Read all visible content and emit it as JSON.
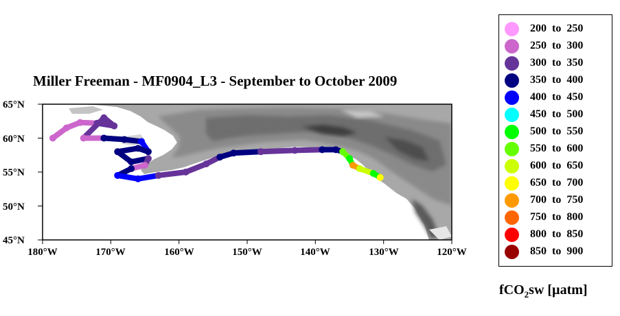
{
  "map": {
    "title": "Miller Freeman - MF0904_L3 - September to October 2009",
    "lat_labels": [
      "65°N",
      "60°N",
      "55°N",
      "50°N",
      "45°N"
    ],
    "lon_labels": [
      "180°W",
      "170°W",
      "160°W",
      "150°W",
      "140°W",
      "130°W",
      "120°W"
    ],
    "lat_range": [
      45,
      65
    ],
    "lon_range": [
      -180,
      -120
    ],
    "ship_track": [
      {
        "lon": -178.5,
        "lat": 60.0,
        "color": "#cc66cc"
      },
      {
        "lon": -176.5,
        "lat": 61.5,
        "color": "#cc66cc"
      },
      {
        "lon": -174.5,
        "lat": 62.3,
        "color": "#cc66cc"
      },
      {
        "lon": -172.0,
        "lat": 62.2,
        "color": "#663399"
      },
      {
        "lon": -169.5,
        "lat": 61.8,
        "color": "#663399"
      },
      {
        "lon": -171.0,
        "lat": 63.0,
        "color": "#663399"
      },
      {
        "lon": -174.0,
        "lat": 60.0,
        "color": "#cc66cc"
      },
      {
        "lon": -171.0,
        "lat": 60.0,
        "color": "#000080"
      },
      {
        "lon": -168.0,
        "lat": 59.8,
        "color": "#000080"
      },
      {
        "lon": -165.5,
        "lat": 59.5,
        "color": "#0000ff"
      },
      {
        "lon": -164.5,
        "lat": 58.0,
        "color": "#000080"
      },
      {
        "lon": -166.0,
        "lat": 58.5,
        "color": "#000080"
      },
      {
        "lon": -169.0,
        "lat": 58.0,
        "color": "#000080"
      },
      {
        "lon": -167.0,
        "lat": 56.5,
        "color": "#000080"
      },
      {
        "lon": -164.5,
        "lat": 57.0,
        "color": "#663399"
      },
      {
        "lon": -165.0,
        "lat": 56.0,
        "color": "#cc66cc"
      },
      {
        "lon": -167.0,
        "lat": 55.5,
        "color": "#000080"
      },
      {
        "lon": -169.0,
        "lat": 54.5,
        "color": "#0000ff"
      },
      {
        "lon": -166.0,
        "lat": 54.0,
        "color": "#0000ff"
      },
      {
        "lon": -163.0,
        "lat": 54.5,
        "color": "#663399"
      },
      {
        "lon": -159.0,
        "lat": 55.0,
        "color": "#663399"
      },
      {
        "lon": -156.0,
        "lat": 56.2,
        "color": "#663399"
      },
      {
        "lon": -154.0,
        "lat": 57.2,
        "color": "#000080"
      },
      {
        "lon": -152.0,
        "lat": 57.8,
        "color": "#000080"
      },
      {
        "lon": -148.0,
        "lat": 58.0,
        "color": "#663399"
      },
      {
        "lon": -143.0,
        "lat": 58.2,
        "color": "#663399"
      },
      {
        "lon": -139.0,
        "lat": 58.3,
        "color": "#000080"
      },
      {
        "lon": -137.0,
        "lat": 58.3,
        "color": "#000080"
      },
      {
        "lon": -136.0,
        "lat": 58.0,
        "color": "#66ff00"
      },
      {
        "lon": -135.0,
        "lat": 57.0,
        "color": "#00ff00"
      },
      {
        "lon": -134.5,
        "lat": 56.0,
        "color": "#ff9900"
      },
      {
        "lon": -133.5,
        "lat": 55.5,
        "color": "#ccff00"
      },
      {
        "lon": -131.5,
        "lat": 54.8,
        "color": "#00ff00"
      },
      {
        "lon": -130.5,
        "lat": 54.2,
        "color": "#ffff00"
      }
    ]
  },
  "legend": {
    "items": [
      {
        "label": "200 to 250",
        "color": "#ff99ff"
      },
      {
        "label": "250 to 300",
        "color": "#cc66cc"
      },
      {
        "label": "300 to 350",
        "color": "#663399"
      },
      {
        "label": "350 to 400",
        "color": "#000080"
      },
      {
        "label": "400 to 450",
        "color": "#0000ff"
      },
      {
        "label": "450 to 500",
        "color": "#00ffff"
      },
      {
        "label": "500 to 550",
        "color": "#00ff00"
      },
      {
        "label": "550 to 600",
        "color": "#66ff00"
      },
      {
        "label": "600 to 650",
        "color": "#ccff00"
      },
      {
        "label": "650 to 700",
        "color": "#ffff00"
      },
      {
        "label": "700 to 750",
        "color": "#ff9900"
      },
      {
        "label": "750 to 800",
        "color": "#ff6600"
      },
      {
        "label": "800 to 850",
        "color": "#ff0000"
      },
      {
        "label": "850 to 900",
        "color": "#990000"
      }
    ],
    "units_main": "fCO",
    "units_sub": "2",
    "units_rest": "sw [µatm]"
  }
}
